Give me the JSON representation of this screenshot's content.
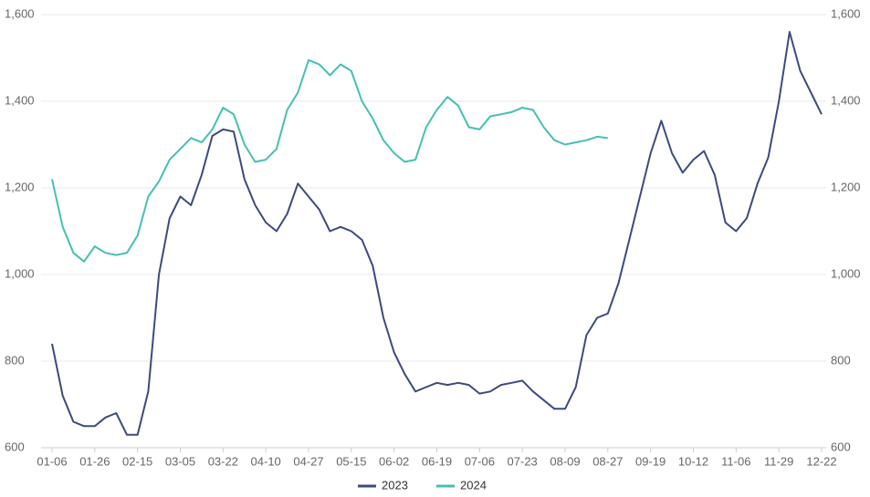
{
  "chart_data": {
    "type": "line",
    "categories": [
      "01-06",
      null,
      null,
      null,
      "01-26",
      null,
      null,
      null,
      "02-15",
      null,
      null,
      null,
      "03-05",
      null,
      null,
      null,
      "03-22",
      null,
      null,
      null,
      "04-10",
      null,
      null,
      null,
      "04-27",
      null,
      null,
      null,
      "05-15",
      null,
      null,
      null,
      "06-02",
      null,
      null,
      null,
      "06-19",
      null,
      null,
      null,
      "07-06",
      null,
      null,
      null,
      "07-23",
      null,
      null,
      null,
      "08-09",
      null,
      null,
      null,
      "08-27",
      null,
      null,
      null,
      "09-19",
      null,
      null,
      null,
      "10-12",
      null,
      null,
      null,
      "11-06",
      null,
      null,
      null,
      "11-29",
      null,
      null,
      null,
      "12-22"
    ],
    "series": [
      {
        "name": "2023",
        "color": "#3d4a7e",
        "values": [
          840,
          720,
          660,
          650,
          650,
          670,
          680,
          630,
          630,
          730,
          1000,
          1130,
          1180,
          1160,
          1230,
          1320,
          1335,
          1330,
          1220,
          1160,
          1120,
          1100,
          1140,
          1210,
          1180,
          1150,
          1100,
          1110,
          1100,
          1080,
          1020,
          900,
          820,
          770,
          730,
          740,
          750,
          745,
          750,
          745,
          725,
          730,
          745,
          750,
          755,
          730,
          710,
          690,
          690,
          740,
          860,
          900,
          910,
          980,
          1080,
          1180,
          1280,
          1355,
          1280,
          1235,
          1265,
          1285,
          1230,
          1120,
          1100,
          1130,
          1210,
          1270,
          1400,
          1560,
          1470,
          1420,
          1370
        ]
      },
      {
        "name": "2024",
        "color": "#45bfb3",
        "values": [
          1220,
          1110,
          1050,
          1030,
          1065,
          1050,
          1045,
          1050,
          1090,
          1180,
          1215,
          1265,
          1290,
          1315,
          1305,
          1335,
          1385,
          1370,
          1300,
          1260,
          1265,
          1290,
          1380,
          1420,
          1495,
          1485,
          1460,
          1485,
          1470,
          1400,
          1360,
          1310,
          1280,
          1260,
          1265,
          1340,
          1380,
          1410,
          1390,
          1340,
          1335,
          1365,
          1370,
          1375,
          1385,
          1380,
          1340,
          1310,
          1300,
          1305,
          1310,
          1318,
          1315,
          null,
          null,
          null,
          null,
          null,
          null,
          null,
          null,
          null,
          null,
          null,
          null,
          null,
          null,
          null,
          null,
          null,
          null,
          null,
          null
        ]
      }
    ],
    "ylim": [
      600,
      1600
    ],
    "yticks": [
      600,
      {
        "value": 1000,
        "label": "1,000"
      },
      800,
      {
        "value": 1200,
        "label": "1,200"
      },
      {
        "value": 1400,
        "label": "1,400"
      },
      {
        "value": 1600,
        "label": "1,600"
      }
    ],
    "y2lim": [
      600,
      1600
    ],
    "y2ticks": [
      600,
      800,
      {
        "value": 1000,
        "label": "1,000"
      },
      {
        "value": 1200,
        "label": "1,200"
      },
      {
        "value": 1400,
        "label": "1,400"
      },
      {
        "value": 1600,
        "label": "1,600"
      }
    ],
    "grid": true,
    "legend": "bottom"
  }
}
